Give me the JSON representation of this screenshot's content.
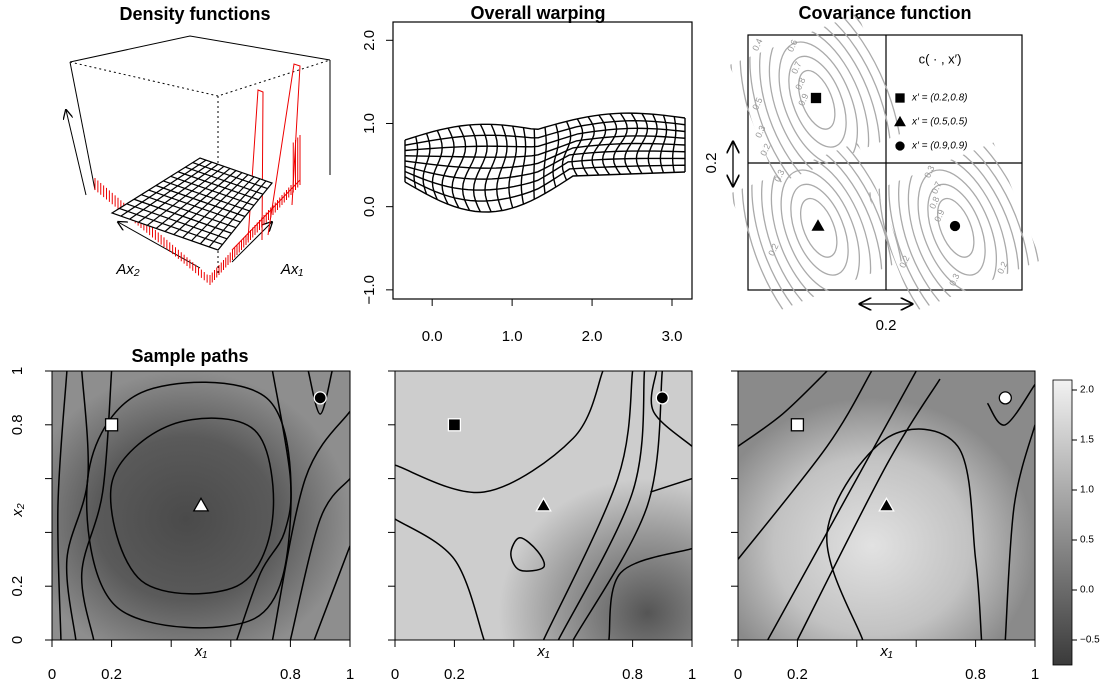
{
  "chart_data": [
    {
      "type": "surface3d",
      "title": "Density functions",
      "axis_labels": [
        "Ax₂",
        "Ax₁"
      ]
    },
    {
      "type": "warp",
      "title": "Overall warping",
      "xlim": [
        -0.49,
        3.25
      ],
      "xticks": [
        {
          "value": 0,
          "label": "0.0"
        },
        {
          "value": 1,
          "label": "1.0"
        },
        {
          "value": 2,
          "label": "2.0"
        },
        {
          "value": 3,
          "label": "3.0"
        }
      ],
      "ylim": [
        -1.11,
        2.22
      ],
      "yticks": [
        {
          "value": -1,
          "label": "−1.0"
        },
        {
          "value": 0,
          "label": "0.0"
        },
        {
          "value": 1,
          "label": "1.0"
        },
        {
          "value": 2,
          "label": "2.0"
        }
      ]
    },
    {
      "type": "covariance",
      "title": "Covariance function",
      "legend_title": "c( · , x′)",
      "series": [
        {
          "name": "x′ = (0.2,0.8)",
          "marker": "square",
          "color": "#000000"
        },
        {
          "name": "x′ = (0.5,0.5)",
          "marker": "triangle",
          "color": "#000000"
        },
        {
          "name": "x′ = (0.9,0.9)",
          "marker": "circle",
          "color": "#000000"
        }
      ],
      "scale_labels": [
        "0.2",
        "0.2"
      ],
      "contour_labels": [
        "0.4",
        "0.6",
        "0.7",
        "0.8",
        "0.9",
        "0.5",
        "0.3",
        "0.2",
        "0.3",
        "0.2",
        "0.3",
        "0.7",
        "0.8",
        "0.9",
        "0.2",
        "0.3",
        "0.2"
      ]
    },
    {
      "type": "heatmap",
      "title": "Sample paths",
      "xlabel": "x₁",
      "ylabel": "x₂",
      "xlim": [
        0,
        1
      ],
      "ylim": [
        0,
        1
      ],
      "xticks": [
        0,
        0.2,
        0.8,
        1
      ],
      "yticks": [
        0,
        0.2,
        0.8,
        1
      ],
      "minor_ticks": [
        0.4,
        0.6
      ],
      "x": [
        0.2,
        0.5,
        0.9
      ],
      "y": [
        0.8,
        0.5,
        0.9
      ],
      "markers": [
        "square",
        "triangle",
        "circle"
      ],
      "marker_colors": [
        "#ffffff",
        "#ffffff",
        "#000000"
      ]
    },
    {
      "type": "heatmap",
      "xlabel": "x₁",
      "xlim": [
        0,
        1
      ],
      "ylim": [
        0,
        1
      ],
      "xticks": [
        0,
        0.2,
        0.8,
        1
      ],
      "yticks_unlabeled": [
        0,
        0.2,
        0.4,
        0.6,
        0.8,
        1
      ],
      "minor_ticks": [
        0.4,
        0.6
      ],
      "x": [
        0.2,
        0.5,
        0.9
      ],
      "y": [
        0.8,
        0.5,
        0.9
      ],
      "markers": [
        "square",
        "triangle",
        "circle"
      ],
      "marker_colors": [
        "#000000",
        "#000000",
        "#000000"
      ]
    },
    {
      "type": "heatmap",
      "xlabel": "x₁",
      "xlim": [
        0,
        1
      ],
      "ylim": [
        0,
        1
      ],
      "xticks": [
        0,
        0.2,
        0.8,
        1
      ],
      "yticks_unlabeled": [
        0,
        0.2,
        0.4,
        0.6,
        0.8,
        1
      ],
      "minor_ticks": [
        0.4,
        0.6
      ],
      "x": [
        0.2,
        0.5,
        0.9
      ],
      "y": [
        0.8,
        0.5,
        0.9
      ],
      "markers": [
        "square",
        "triangle",
        "circle"
      ],
      "marker_colors": [
        "#ffffff",
        "#000000",
        "#ffffff"
      ],
      "colorbar": {
        "lim": [
          -0.75,
          2.1
        ],
        "ticks": [
          {
            "value": 2,
            "label": "2.0"
          },
          {
            "value": 1.5,
            "label": "1.5"
          },
          {
            "value": 1,
            "label": "1.0"
          },
          {
            "value": 0.5,
            "label": "0.5"
          },
          {
            "value": 0,
            "label": "0.0"
          },
          {
            "value": -0.5,
            "label": "−0.5"
          }
        ]
      }
    }
  ]
}
